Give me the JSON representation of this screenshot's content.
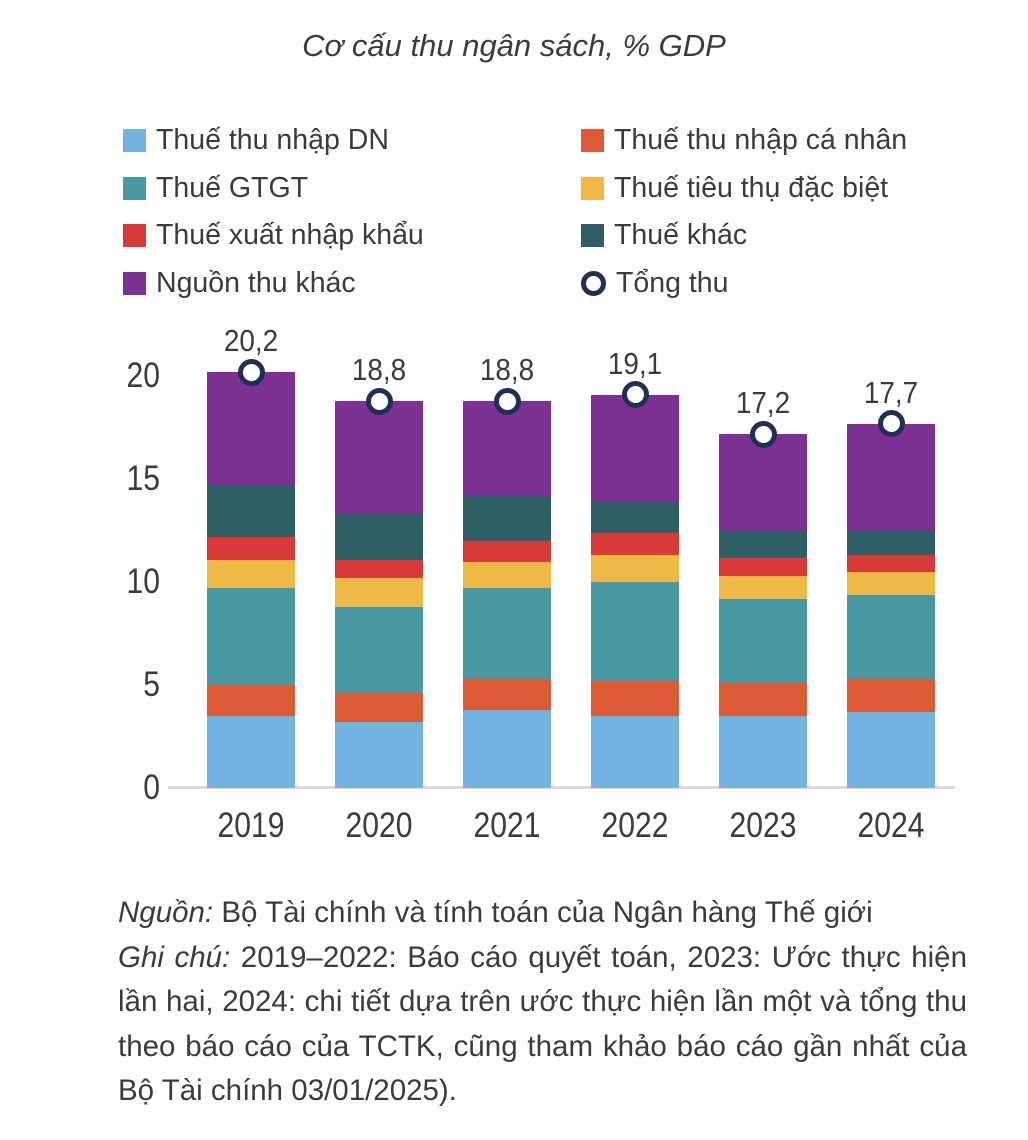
{
  "title": "Cơ cấu thu ngân sách, % GDP",
  "colors": {
    "cit": "#72B4E0",
    "pit": "#DC5B35",
    "vat": "#4A99A1",
    "excise": "#F0B844",
    "trade": "#D83A38",
    "other_tax": "#2E5E66",
    "other_rev": "#7C3192",
    "total": "#1F3050",
    "axis_line": "#DBDBDB",
    "text": "#3B3B3B"
  },
  "legend": {
    "columns": [
      {
        "items": [
          {
            "key": "cit",
            "label": "Thuế thu nhập DN",
            "marker": "square"
          },
          {
            "key": "vat",
            "label": "Thuế GTGT",
            "marker": "square"
          },
          {
            "key": "trade",
            "label": "Thuế xuất nhập khẩu",
            "marker": "square"
          },
          {
            "key": "other_rev",
            "label": "Nguồn thu khác",
            "marker": "square"
          }
        ]
      },
      {
        "items": [
          {
            "key": "pit",
            "label": "Thuế thu nhập cá nhân",
            "marker": "square"
          },
          {
            "key": "excise",
            "label": "Thuế tiêu thụ đặc biệt",
            "marker": "square"
          },
          {
            "key": "other_tax",
            "label": "Thuế khác",
            "marker": "square"
          },
          {
            "key": "total",
            "label": "Tổng thu",
            "marker": "ring"
          }
        ]
      }
    ]
  },
  "chart_data": {
    "type": "bar",
    "stacked": true,
    "title": "Cơ cấu thu ngân sách, % GDP",
    "xlabel": "",
    "ylabel": "% GDP",
    "ylim": [
      0,
      21.5
    ],
    "yticks": [
      0,
      5,
      10,
      15,
      20
    ],
    "grid": false,
    "categories": [
      "2019",
      "2020",
      "2021",
      "2022",
      "2023",
      "2024"
    ],
    "series": [
      {
        "key": "cit",
        "name": "Thuế thu nhập DN",
        "values": [
          3.5,
          3.2,
          3.8,
          3.5,
          3.5,
          3.7
        ]
      },
      {
        "key": "pit",
        "name": "Thuế thu nhập cá nhân",
        "values": [
          1.5,
          1.4,
          1.5,
          1.7,
          1.6,
          1.6
        ]
      },
      {
        "key": "vat",
        "name": "Thuế GTGT",
        "values": [
          4.7,
          4.2,
          4.4,
          4.8,
          4.1,
          4.1
        ]
      },
      {
        "key": "excise",
        "name": "Thuế tiêu thụ đặc biệt",
        "values": [
          1.4,
          1.4,
          1.3,
          1.3,
          1.1,
          1.1
        ]
      },
      {
        "key": "trade",
        "name": "Thuế xuất nhập khẩu",
        "values": [
          1.1,
          0.9,
          1.0,
          1.1,
          0.9,
          0.8
        ]
      },
      {
        "key": "other_tax",
        "name": "Thuế khác",
        "values": [
          2.5,
          2.2,
          2.2,
          1.5,
          1.3,
          1.2
        ]
      },
      {
        "key": "other_rev",
        "name": "Nguồn thu khác",
        "values": [
          5.5,
          5.5,
          4.6,
          5.2,
          4.7,
          5.2
        ]
      }
    ],
    "marker_series": {
      "key": "total",
      "name": "Tổng thu",
      "values": [
        20.2,
        18.8,
        18.8,
        19.1,
        17.2,
        17.7
      ],
      "labels": [
        "20,2",
        "18,8",
        "18,8",
        "19,1",
        "17,2",
        "17,7"
      ]
    }
  },
  "footer": {
    "source_label": "Nguồn:",
    "source_text": " Bộ Tài chính và tính toán của Ngân hàng Thế giới",
    "note_label": "Ghi chú:",
    "note_text": " 2019–2022: Báo cáo quyết toán, 2023: Ước thực hiện lần hai, 2024: chi tiết dựa trên ước thực hiện lần một và tổng thu theo báo cáo của TCTK, cũng tham khảo báo cáo gần nhất của Bộ Tài chính 03/01/2025)."
  }
}
